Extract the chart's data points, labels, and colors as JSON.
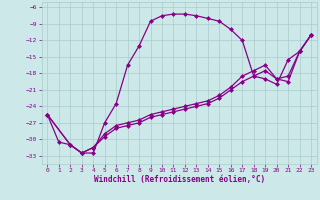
{
  "xlabel": "Windchill (Refroidissement éolien,°C)",
  "bg_color": "#cce8e8",
  "grid_color": "#aacccc",
  "line_color": "#880088",
  "xlim": [
    -0.5,
    23.5
  ],
  "ylim": [
    -34.5,
    -5.0
  ],
  "yticks": [
    -6,
    -9,
    -12,
    -15,
    -18,
    -21,
    -24,
    -27,
    -30,
    -33
  ],
  "xticks": [
    0,
    1,
    2,
    3,
    4,
    5,
    6,
    7,
    8,
    9,
    10,
    11,
    12,
    13,
    14,
    15,
    16,
    17,
    18,
    19,
    20,
    21,
    22,
    23
  ],
  "curve1_x": [
    0,
    1,
    2,
    3,
    4,
    5,
    6,
    7,
    8,
    9,
    10,
    11,
    12,
    13,
    14,
    15,
    16,
    17,
    18,
    19,
    20,
    21,
    22,
    23
  ],
  "curve1_y": [
    -25.5,
    -30.5,
    -31.0,
    -32.5,
    -32.5,
    -27.0,
    -23.5,
    -16.5,
    -13.0,
    -8.5,
    -7.5,
    -7.2,
    -7.2,
    -7.5,
    -8.0,
    -8.5,
    -10.0,
    -12.0,
    -18.5,
    -19.0,
    -20.0,
    -15.5,
    -14.0,
    -11.0
  ],
  "curve2_x": [
    0,
    2,
    3,
    4,
    5,
    6,
    7,
    8,
    9,
    10,
    11,
    12,
    13,
    14,
    15,
    16,
    17,
    18,
    19,
    20,
    21,
    22,
    23
  ],
  "curve2_y": [
    -25.5,
    -31.0,
    -32.5,
    -31.5,
    -29.5,
    -28.0,
    -27.5,
    -27.0,
    -26.0,
    -25.5,
    -25.0,
    -24.5,
    -24.0,
    -23.5,
    -22.5,
    -21.0,
    -19.5,
    -18.5,
    -17.5,
    -19.0,
    -18.5,
    -14.0,
    -11.0
  ],
  "curve3_x": [
    0,
    2,
    3,
    4,
    5,
    6,
    7,
    8,
    9,
    10,
    11,
    12,
    13,
    14,
    15,
    16,
    17,
    18,
    19,
    20,
    21,
    22,
    23
  ],
  "curve3_y": [
    -25.5,
    -31.0,
    -32.5,
    -31.5,
    -29.0,
    -27.5,
    -27.0,
    -26.5,
    -25.5,
    -25.0,
    -24.5,
    -24.0,
    -23.5,
    -23.0,
    -22.0,
    -20.5,
    -18.5,
    -17.5,
    -16.5,
    -19.0,
    -19.5,
    -14.0,
    -11.0
  ]
}
